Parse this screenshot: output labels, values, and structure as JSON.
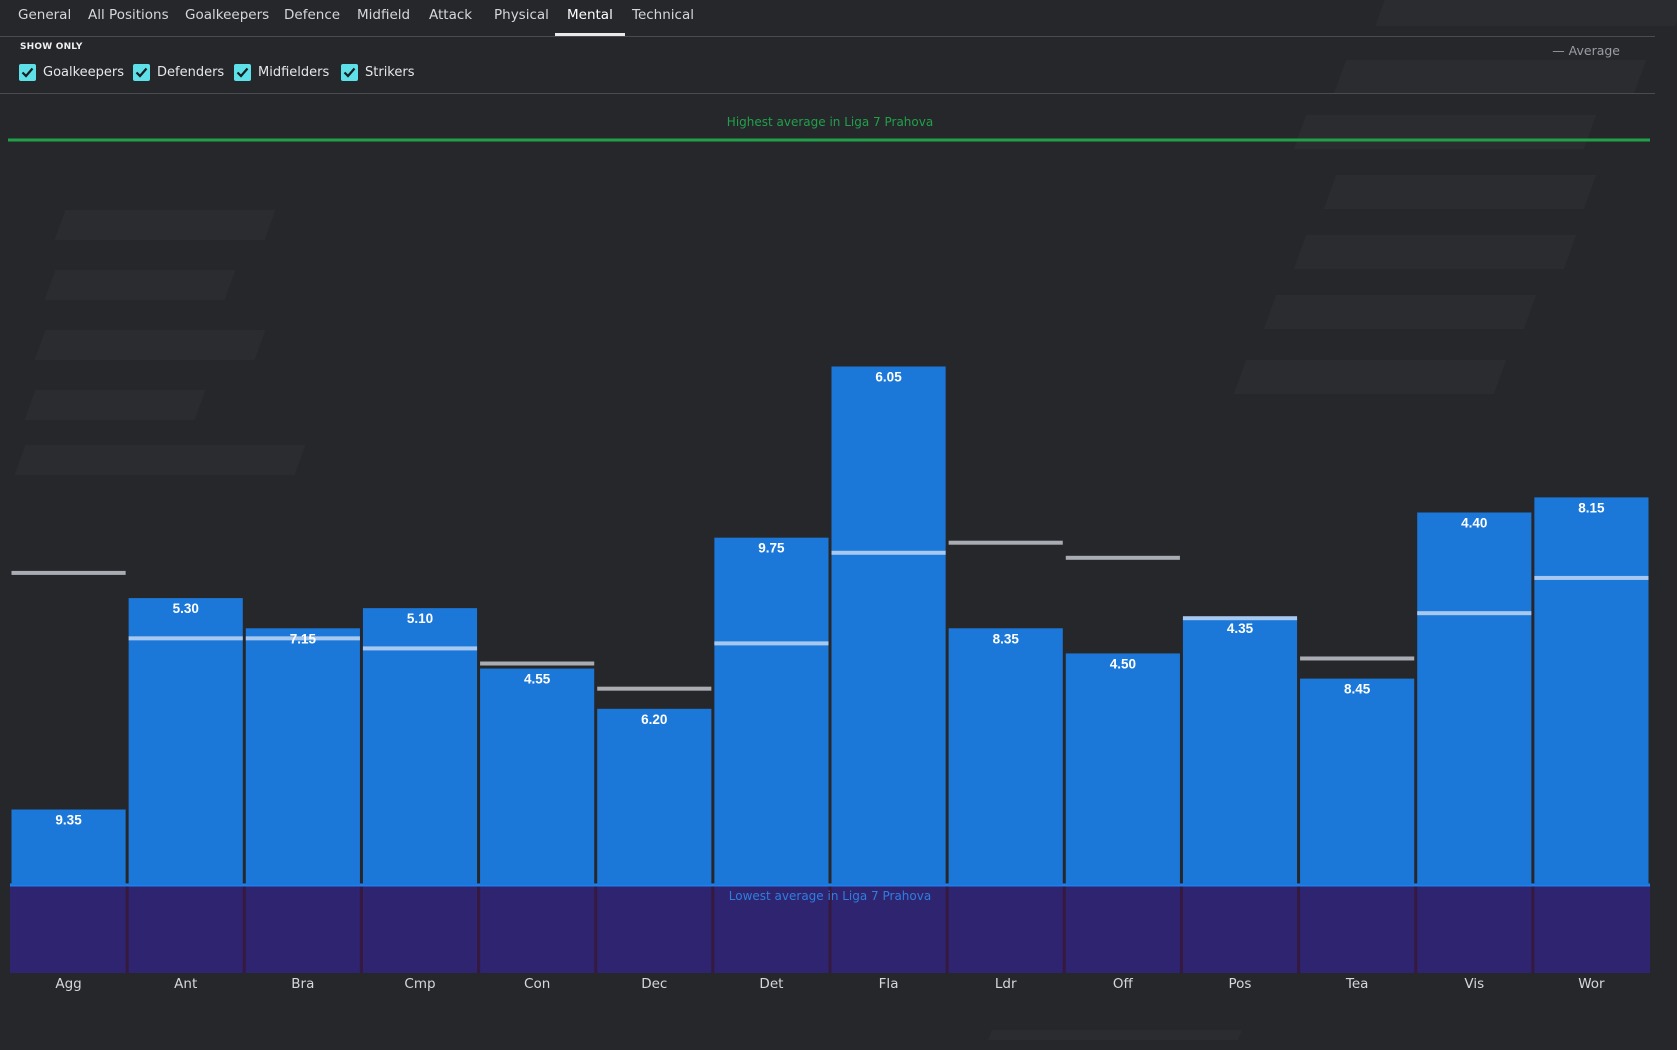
{
  "tabs": [
    {
      "label": "General",
      "active": false
    },
    {
      "label": "All Positions",
      "active": false
    },
    {
      "label": "Goalkeepers",
      "active": false
    },
    {
      "label": "Defence",
      "active": false
    },
    {
      "label": "Midfield",
      "active": false
    },
    {
      "label": "Attack",
      "active": false
    },
    {
      "label": "Physical",
      "active": false
    },
    {
      "label": "Mental",
      "active": true
    },
    {
      "label": "Technical",
      "active": false
    }
  ],
  "filters": {
    "heading": "SHOW ONLY",
    "options": [
      {
        "label": "Goalkeepers",
        "checked": true
      },
      {
        "label": "Defenders",
        "checked": true
      },
      {
        "label": "Midfielders",
        "checked": true
      },
      {
        "label": "Strikers",
        "checked": true
      }
    ],
    "average_legend": "— Average"
  },
  "colors": {
    "background": "#26272b",
    "bar": "#1b78d8",
    "highest_line": "#21a049",
    "lowest_band": "#2f2470",
    "lowest_line": "#1f7ff0",
    "checkbox": "#5ee0e8",
    "average_marker": "#a9acb3"
  },
  "chart_data": {
    "type": "bar",
    "categories": [
      "Agg",
      "Ant",
      "Bra",
      "Cmp",
      "Con",
      "Dec",
      "Det",
      "Fla",
      "Ldr",
      "Off",
      "Pos",
      "Tea",
      "Vis",
      "Wor"
    ],
    "bar_labels": [
      "9.35",
      "5.30",
      "7.15",
      "5.10",
      "4.55",
      "6.20",
      "9.75",
      "6.05",
      "8.35",
      "4.50",
      "4.35",
      "8.45",
      "4.40",
      "8.15"
    ],
    "values": [
      8.1,
      12.3,
      11.7,
      12.1,
      10.9,
      10.1,
      13.5,
      16.9,
      11.7,
      11.2,
      11.9,
      10.7,
      14.0,
      14.3
    ],
    "average": [
      12.8,
      11.5,
      11.5,
      11.3,
      11.0,
      10.5,
      11.4,
      13.2,
      13.4,
      13.1,
      11.9,
      11.1,
      12.0,
      12.7
    ],
    "ylim": [
      6.6,
      21.4
    ],
    "highest_line": {
      "value": 21.4,
      "label": "Highest average in Liga 7 Prahova"
    },
    "lowest_line": {
      "value": 6.6,
      "label": "Lowest average in Liga 7 Prahova"
    },
    "legend": "Average",
    "grid": false
  }
}
